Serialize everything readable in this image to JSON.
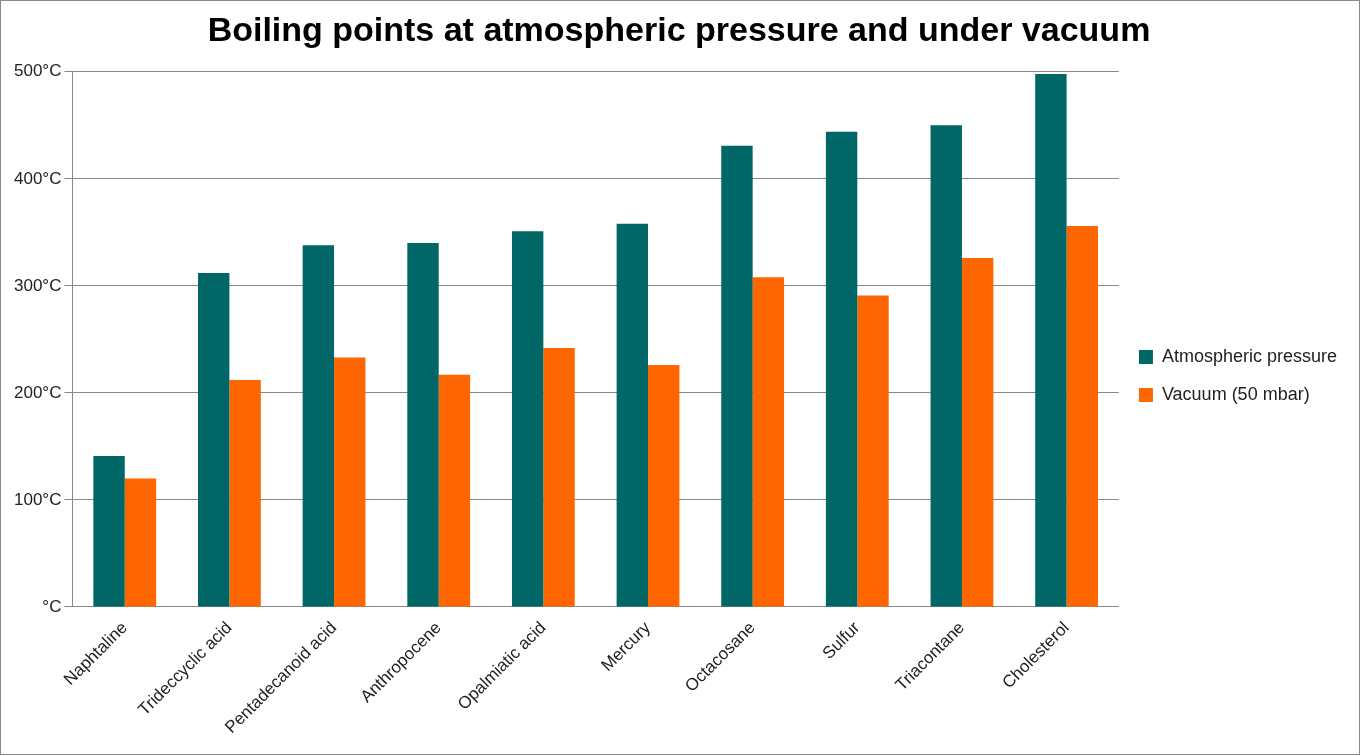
{
  "chart_data": {
    "type": "bar",
    "title": "Boiling points at atmospheric pressure and under vacuum",
    "categories": [
      "Naphtaline",
      "Trideccyclic acid",
      "Pentadecanoid acid",
      "Anthropocene",
      "Opalmiatic acid",
      "Mercury",
      "Octacosane",
      "Sulfur",
      "Triacontane",
      "Cholesterol"
    ],
    "series": [
      {
        "name": "Atmospheric pressure",
        "color": "#006666",
        "values": [
          141,
          312,
          338,
          340,
          351,
          358,
          431,
          444,
          450,
          498
        ]
      },
      {
        "name": "Vacuum (50 mbar)",
        "color": "#ff6600",
        "values": [
          120,
          212,
          233,
          217,
          242,
          226,
          308,
          291,
          326,
          356
        ]
      }
    ],
    "ylim": [
      0,
      500
    ],
    "yticks": [
      {
        "value": 0,
        "label": "°C"
      },
      {
        "value": 100,
        "label": "100°C"
      },
      {
        "value": 200,
        "label": "200°C"
      },
      {
        "value": 300,
        "label": "300°C"
      },
      {
        "value": 400,
        "label": "400°C"
      },
      {
        "value": 500,
        "label": "500°C"
      }
    ],
    "grid": "y",
    "legend": "right"
  }
}
